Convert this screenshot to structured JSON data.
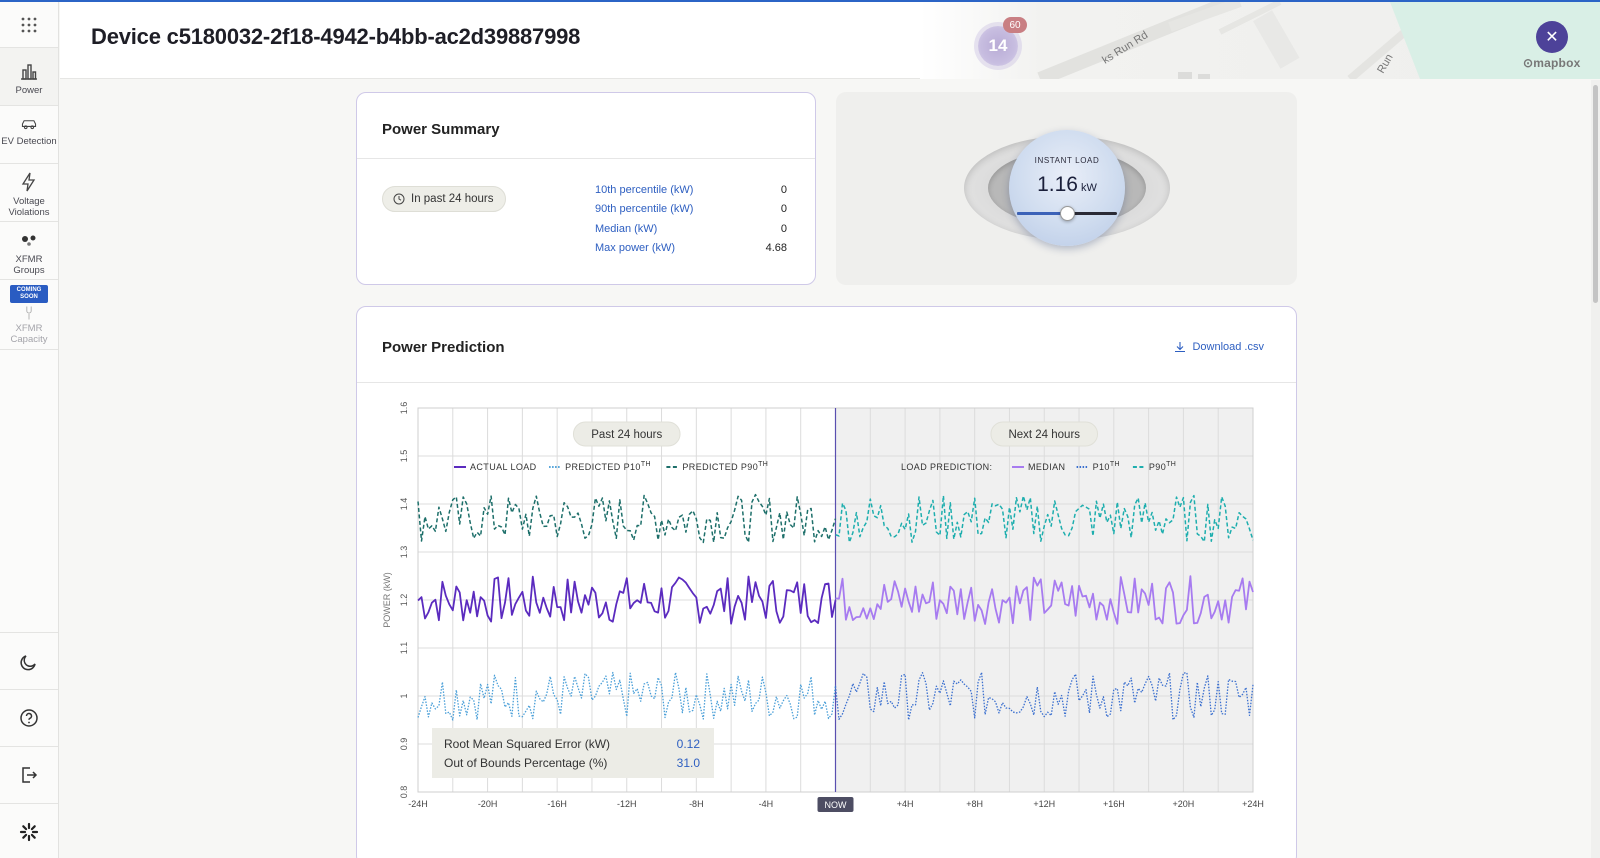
{
  "header": {
    "title": "Device c5180032-2f18-4942-b4bb-ac2d39887998"
  },
  "sidebar": {
    "items": [
      {
        "label": "Power",
        "icon": "bar-chart-icon"
      },
      {
        "label": "EV Detection",
        "icon": "car-icon"
      },
      {
        "label": "Voltage Violations",
        "icon": "lightning-icon"
      },
      {
        "label": "XFMR Groups",
        "icon": "dots-group-icon"
      },
      {
        "label": "XFMR Capacity",
        "icon": "transformer-icon",
        "badge": "COMING SOON"
      }
    ],
    "bottom": [
      "moon-icon",
      "help-icon",
      "logout-icon",
      "logo-icon"
    ]
  },
  "map": {
    "cluster_count": "14",
    "cluster_badge": "60",
    "road_label": "ks Run Rd",
    "road_label_2": "Run",
    "attribution": "mapbox"
  },
  "summary": {
    "title": "Power Summary",
    "period": "In past 24 hours",
    "stats": [
      {
        "label": "10th percentile (kW)",
        "value": "0"
      },
      {
        "label": "90th percentile (kW)",
        "value": "0"
      },
      {
        "label": "Median (kW)",
        "value": "0"
      },
      {
        "label": "Max power (kW)",
        "value": "4.68"
      }
    ]
  },
  "instant_load": {
    "label": "INSTANT LOAD",
    "value": "1.16",
    "unit": "kW",
    "slider_fraction": 0.5
  },
  "prediction": {
    "title": "Power Prediction",
    "download_label": "Download .csv",
    "past_label": "Past 24 hours",
    "next_label": "Next 24 hours",
    "legend_past": [
      {
        "name": "ACTUAL LOAD",
        "sup": "",
        "style": "solid",
        "color": "#5b2bbf"
      },
      {
        "name": "PREDICTED P10",
        "sup": "TH",
        "style": "dotted",
        "color": "#4a9fd8"
      },
      {
        "name": "PREDICTED P90",
        "sup": "TH",
        "style": "dashed",
        "color": "#1d6f6a"
      }
    ],
    "legend_future_title": "LOAD PREDICTION:",
    "legend_future": [
      {
        "name": "MEDIAN",
        "sup": "",
        "style": "solid",
        "color": "#a77bf0"
      },
      {
        "name": "P10",
        "sup": "TH",
        "style": "dotted",
        "color": "#3a6fcf"
      },
      {
        "name": "P90",
        "sup": "TH",
        "style": "dashed",
        "color": "#1eaeae"
      }
    ],
    "metrics": [
      {
        "label": "Root Mean Squared Error (kW)",
        "value": "0.12"
      },
      {
        "label": "Out of Bounds Percentage (%)",
        "value": "31.0"
      }
    ],
    "now_label": "NOW"
  },
  "chart_data": {
    "type": "line",
    "ylabel": "POWER (kW)",
    "xlabel": "",
    "ylim": [
      0.8,
      1.6
    ],
    "yticks": [
      "0.8",
      "0.9",
      "1",
      "1.1",
      "1.2",
      "1.3",
      "1.4",
      "1.5",
      "1.6"
    ],
    "xlim": [
      -24,
      24
    ],
    "xticks": [
      "-24H",
      "-20H",
      "-16H",
      "-12H",
      "-8H",
      "-4H",
      "NOW",
      "+4H",
      "+8H",
      "+12H",
      "+16H",
      "+20H",
      "+24H"
    ],
    "grid": true,
    "series": [
      {
        "name": "ACTUAL LOAD",
        "range": "past",
        "center": 1.2,
        "amplitude": 0.05
      },
      {
        "name": "PREDICTED P10",
        "range": "past",
        "center": 1.0,
        "amplitude": 0.05
      },
      {
        "name": "PREDICTED P90",
        "range": "past",
        "center": 1.37,
        "amplitude": 0.05
      },
      {
        "name": "MEDIAN",
        "range": "future",
        "center": 1.2,
        "amplitude": 0.05
      },
      {
        "name": "P10",
        "range": "future",
        "center": 1.0,
        "amplitude": 0.05
      },
      {
        "name": "P90",
        "range": "future",
        "center": 1.37,
        "amplitude": 0.05
      }
    ]
  }
}
